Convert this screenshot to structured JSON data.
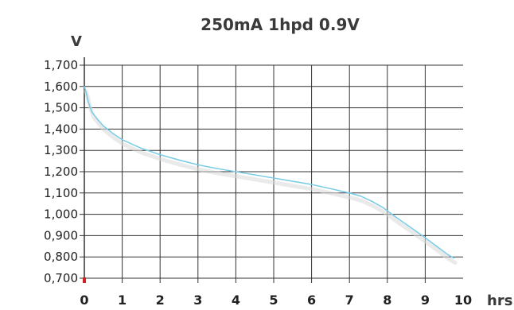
{
  "chart_data": {
    "type": "line",
    "title": "250mA 1hpd 0.9V",
    "ylabel": "V",
    "xlabel": "hrs",
    "xlim": [
      0,
      10
    ],
    "ylim": [
      700,
      1700
    ],
    "x_ticks": [
      "0",
      "1",
      "2",
      "3",
      "4",
      "5",
      "6",
      "7",
      "8",
      "9",
      "10"
    ],
    "y_ticks": [
      "0,700",
      "0,800",
      "0,900",
      "1,000",
      "1,100",
      "1,200",
      "1,300",
      "1,400",
      "1,500",
      "1,600",
      "1,700"
    ],
    "grid": true,
    "colors": {
      "line": "#7ecde6",
      "shadow": "#d9d9d9",
      "grid": "#333333",
      "marker": "#cc2222"
    },
    "series": [
      {
        "x": [
          0,
          0.05,
          0.1,
          0.2,
          0.35,
          0.5,
          0.75,
          1.0,
          1.5,
          2.0,
          2.5,
          3.0,
          3.5,
          4.0,
          4.5,
          5.0,
          5.5,
          6.0,
          6.5,
          7.0,
          7.3,
          7.6,
          7.9,
          8.2,
          8.6,
          9.0,
          9.3,
          9.6,
          9.75
        ],
        "y": [
          1600,
          1570,
          1530,
          1480,
          1445,
          1415,
          1380,
          1350,
          1310,
          1280,
          1255,
          1232,
          1215,
          1200,
          1185,
          1170,
          1155,
          1140,
          1120,
          1100,
          1085,
          1060,
          1030,
          990,
          940,
          890,
          850,
          810,
          795
        ]
      }
    ]
  }
}
